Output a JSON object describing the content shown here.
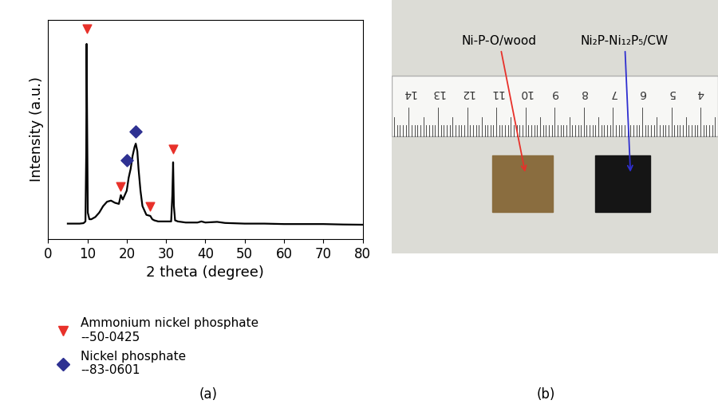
{
  "chart_data": {
    "type": "line",
    "x_label": "2 theta (degree)",
    "y_label": "Intensity (a.u.)",
    "xlim": [
      0,
      80
    ],
    "xticks": [
      0,
      10,
      20,
      30,
      40,
      50,
      60,
      70,
      80
    ],
    "ylim": [
      0,
      100
    ],
    "tick_labels": "x",
    "legend": "lower left",
    "series": [
      {
        "type": "line",
        "color": "#000000",
        "x": [
          5,
          7,
          8,
          9,
          9.5,
          9.7,
          9.8,
          9.9,
          10.1,
          10.5,
          11,
          12,
          13,
          14,
          15,
          16,
          17,
          18,
          18.5,
          19,
          20,
          20.5,
          21,
          21.5,
          22,
          22.3,
          22.7,
          23,
          23.5,
          24,
          25,
          26,
          26.5,
          27,
          28,
          30,
          31.3,
          31.6,
          31.8,
          32,
          32.3,
          33,
          35,
          38,
          39,
          40,
          43,
          45,
          50,
          55,
          60,
          65,
          70,
          75,
          80
        ],
        "values": [
          7,
          7,
          7,
          7.2,
          8,
          40,
          89,
          60,
          12,
          9,
          9,
          10,
          12,
          15,
          17,
          17.5,
          16.5,
          16,
          20,
          18,
          22,
          28,
          32,
          38,
          42,
          43.5,
          40,
          32,
          22,
          15,
          11,
          10.5,
          9,
          8.5,
          8,
          8,
          8,
          20,
          35,
          15,
          8.5,
          8,
          7.5,
          7.5,
          8,
          7.5,
          7.8,
          7.3,
          7,
          7,
          6.8,
          6.8,
          6.8,
          6.6,
          6.5
        ]
      },
      {
        "name": "Ammonium nickel phosphate",
        "pdf_card": "--50-0425",
        "type": "scatter",
        "marker": "v",
        "color": "#e8312a",
        "x": [
          9.8,
          18.5,
          26,
          31.7
        ],
        "values": [
          96,
          24,
          15,
          41
        ]
      },
      {
        "name": "Nickel phosphate",
        "pdf_card": "--83-0601",
        "type": "scatter",
        "marker": "D",
        "color": "#2e3192",
        "x": [
          20,
          22.3
        ],
        "values": [
          36,
          49
        ]
      }
    ]
  },
  "panel_labels": [
    "(a)",
    "(b)"
  ],
  "photo": {
    "ruler_numbers": [
      14,
      13,
      12,
      11,
      10,
      9,
      8,
      7,
      6,
      5,
      4
    ],
    "samples": [
      {
        "label": "Ni-P-O/wood",
        "color": "#e8312a"
      },
      {
        "label": "Ni₂P-Ni₁₂P₅/CW",
        "color": "#2f2fd0"
      }
    ]
  }
}
